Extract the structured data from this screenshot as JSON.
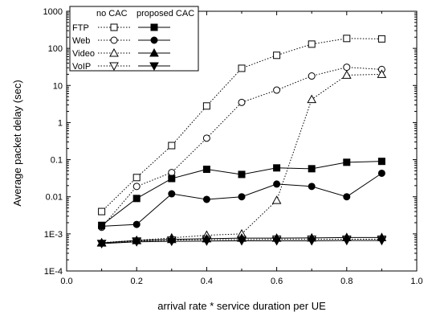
{
  "chart_data": {
    "type": "line",
    "title": "",
    "xlabel": "arrival rate * service duration per UE",
    "ylabel": "Average packet delay (sec)",
    "xlim": [
      0.0,
      1.0
    ],
    "ylim": [
      0.0001,
      1000
    ],
    "yscale": "log",
    "grid": false,
    "legend_position": "top-left",
    "legend": {
      "col1_header": "no CAC",
      "col2_header": "proposed CAC"
    },
    "x_ticks": [
      "0.0",
      "0.2",
      "0.4",
      "0.6",
      "0.8",
      "1.0"
    ],
    "y_ticks": [
      {
        "value": 0.0001,
        "label": "1E-4"
      },
      {
        "value": 0.001,
        "label": "1E-3"
      },
      {
        "value": 0.01,
        "label": "0.01"
      },
      {
        "value": 0.1,
        "label": "0.1"
      },
      {
        "value": 1,
        "label": "1"
      },
      {
        "value": 10,
        "label": "10"
      },
      {
        "value": 100,
        "label": "100"
      },
      {
        "value": 1000,
        "label": "1000"
      }
    ],
    "x": [
      0.1,
      0.2,
      0.3,
      0.4,
      0.5,
      0.6,
      0.7,
      0.8,
      0.9
    ],
    "series": [
      {
        "name": "FTP",
        "group": "no CAC",
        "marker": "square",
        "filled": false,
        "dash": true,
        "values": [
          0.004,
          0.033,
          0.24,
          2.8,
          29,
          65,
          130,
          185,
          180
        ]
      },
      {
        "name": "Web",
        "group": "no CAC",
        "marker": "circle",
        "filled": false,
        "dash": true,
        "values": [
          0.0015,
          0.019,
          0.045,
          0.38,
          3.5,
          7.5,
          18,
          31,
          27
        ]
      },
      {
        "name": "Video",
        "group": "no CAC",
        "marker": "triangle-up",
        "filled": false,
        "dash": true,
        "values": [
          0.00058,
          0.00067,
          0.00078,
          0.00092,
          0.001,
          0.008,
          4.2,
          19,
          20
        ]
      },
      {
        "name": "VoIP",
        "group": "no CAC",
        "marker": "triangle-down",
        "filled": false,
        "dash": true,
        "values": [
          0.00055,
          0.00064,
          0.00068,
          0.0007,
          0.0007,
          0.00072,
          0.00072,
          0.00072,
          0.00072
        ]
      },
      {
        "name": "FTP",
        "group": "proposed CAC",
        "marker": "square",
        "filled": true,
        "dash": false,
        "values": [
          0.0017,
          0.009,
          0.031,
          0.055,
          0.04,
          0.06,
          0.057,
          0.085,
          0.09
        ]
      },
      {
        "name": "Web",
        "group": "proposed CAC",
        "marker": "circle",
        "filled": true,
        "dash": false,
        "values": [
          0.0016,
          0.0018,
          0.012,
          0.0085,
          0.01,
          0.022,
          0.019,
          0.01,
          0.043
        ]
      },
      {
        "name": "Video",
        "group": "proposed CAC",
        "marker": "triangle-up",
        "filled": true,
        "dash": false,
        "values": [
          0.00057,
          0.00066,
          0.00071,
          0.00074,
          0.00077,
          0.00077,
          0.00078,
          0.0008,
          0.0008
        ]
      },
      {
        "name": "VoIP",
        "group": "proposed CAC",
        "marker": "triangle-down",
        "filled": true,
        "dash": false,
        "values": [
          0.00055,
          0.00061,
          0.00063,
          0.00064,
          0.00065,
          0.00065,
          0.00065,
          0.00066,
          0.00066
        ]
      }
    ],
    "colors": {
      "line": "#000000",
      "background": "#ffffff"
    }
  }
}
